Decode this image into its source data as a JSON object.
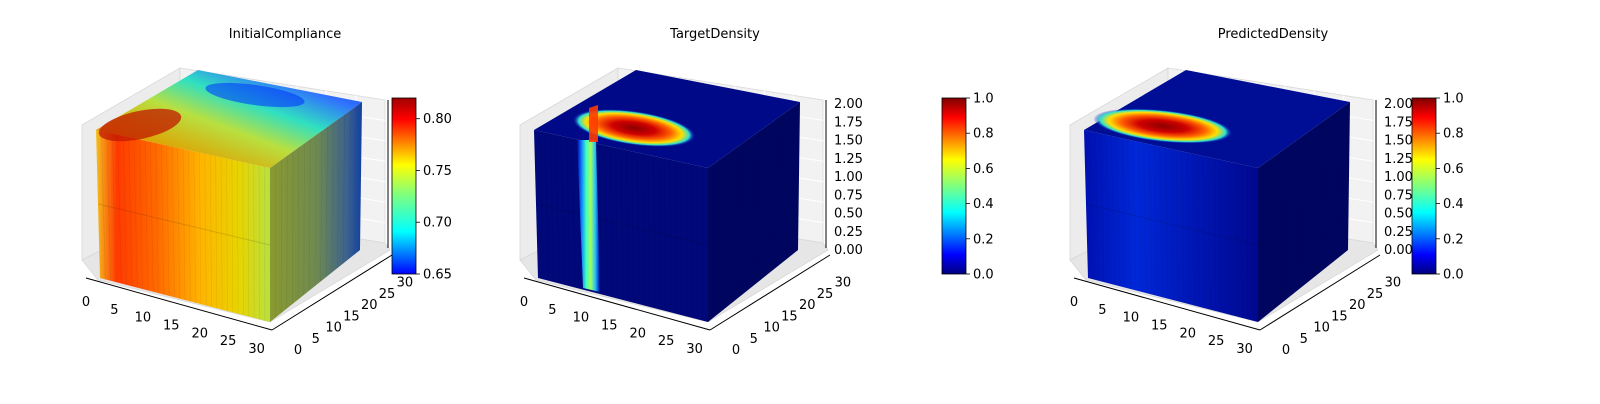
{
  "chart_data": [
    {
      "type": "3d-voxel",
      "title": "InitialCompliance",
      "colormap": "jet",
      "x_ticks": [
        0,
        5,
        10,
        15,
        20,
        25,
        30
      ],
      "y_ticks": [
        0,
        5,
        10,
        15,
        20,
        25,
        30
      ],
      "z_ticks": [
        "",
        "",
        "",
        "",
        "",
        "",
        ""
      ],
      "x_range": [
        0,
        32
      ],
      "y_range": [
        0,
        32
      ],
      "z_range": [
        0,
        2
      ],
      "colorbar": {
        "min": 0.65,
        "max": 0.82,
        "ticks": [
          0.65,
          0.7,
          0.75,
          0.8
        ]
      },
      "grid": true
    },
    {
      "type": "3d-voxel",
      "title": "TargetDensity",
      "colormap": "jet",
      "x_ticks": [
        0,
        5,
        10,
        15,
        20,
        25,
        30
      ],
      "y_ticks": [
        0,
        5,
        10,
        15,
        20,
        25,
        30
      ],
      "z_ticks": [
        "0.00",
        "0.25",
        "0.50",
        "0.75",
        "1.00",
        "1.25",
        "1.50",
        "1.75",
        "2.00"
      ],
      "x_range": [
        0,
        32
      ],
      "y_range": [
        0,
        32
      ],
      "z_range": [
        0,
        2
      ],
      "colorbar": {
        "min": 0.0,
        "max": 1.0,
        "ticks": [
          "0.0",
          "0.2",
          "0.4",
          "0.6",
          "0.8",
          "1.0"
        ]
      },
      "grid": true
    },
    {
      "type": "3d-voxel",
      "title": "PredictedDensity",
      "colormap": "jet",
      "x_ticks": [
        0,
        5,
        10,
        15,
        20,
        25,
        30
      ],
      "y_ticks": [
        0,
        5,
        10,
        15,
        20,
        25,
        30
      ],
      "z_ticks": [
        "0.00",
        "0.25",
        "0.50",
        "0.75",
        "1.00",
        "1.25",
        "1.50",
        "1.75",
        "2.00"
      ],
      "x_range": [
        0,
        32
      ],
      "y_range": [
        0,
        32
      ],
      "z_range": [
        0,
        2
      ],
      "colorbar": {
        "min": 0.0,
        "max": 1.0,
        "ticks": [
          "0.0",
          "0.2",
          "0.4",
          "0.6",
          "0.8",
          "1.0"
        ]
      },
      "grid": true
    }
  ]
}
